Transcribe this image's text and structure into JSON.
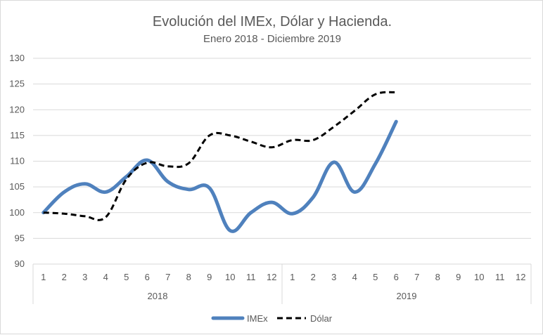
{
  "chart_data": {
    "type": "line",
    "title": "Evolución del IMEx, Dólar y Hacienda.",
    "subtitle": "Enero 2018 - Diciembre 2019",
    "xlabel": "",
    "ylabel": "",
    "ylim": [
      90,
      130
    ],
    "yticks": [
      "90",
      "95",
      "100",
      "105",
      "110",
      "115",
      "120",
      "125",
      "130"
    ],
    "grid": true,
    "legend_position": "bottom",
    "groups": [
      {
        "label": "2018",
        "categories": [
          "1",
          "2",
          "3",
          "4",
          "5",
          "6",
          "7",
          "8",
          "9",
          "10",
          "11",
          "12"
        ]
      },
      {
        "label": "2019",
        "categories": [
          "1",
          "2",
          "3",
          "4",
          "5",
          "6",
          "7",
          "8",
          "9",
          "10",
          "11",
          "12"
        ]
      }
    ],
    "series": [
      {
        "name": "IMEx",
        "color": "#4f81bd",
        "style": "solid",
        "values": [
          100.0,
          104.0,
          105.6,
          104.0,
          107.0,
          110.2,
          106.0,
          104.5,
          104.8,
          96.5,
          100.0,
          102.0,
          99.8,
          103.0,
          109.8,
          104.0,
          109.5,
          117.7
        ]
      },
      {
        "name": "Dólar",
        "color": "#000000",
        "style": "dashed",
        "values": [
          100.0,
          99.8,
          99.3,
          99.1,
          106.5,
          109.7,
          109.0,
          109.6,
          115.0,
          115.0,
          113.8,
          112.7,
          114.1,
          114.1,
          116.7,
          119.8,
          123.0,
          123.4
        ]
      }
    ]
  }
}
